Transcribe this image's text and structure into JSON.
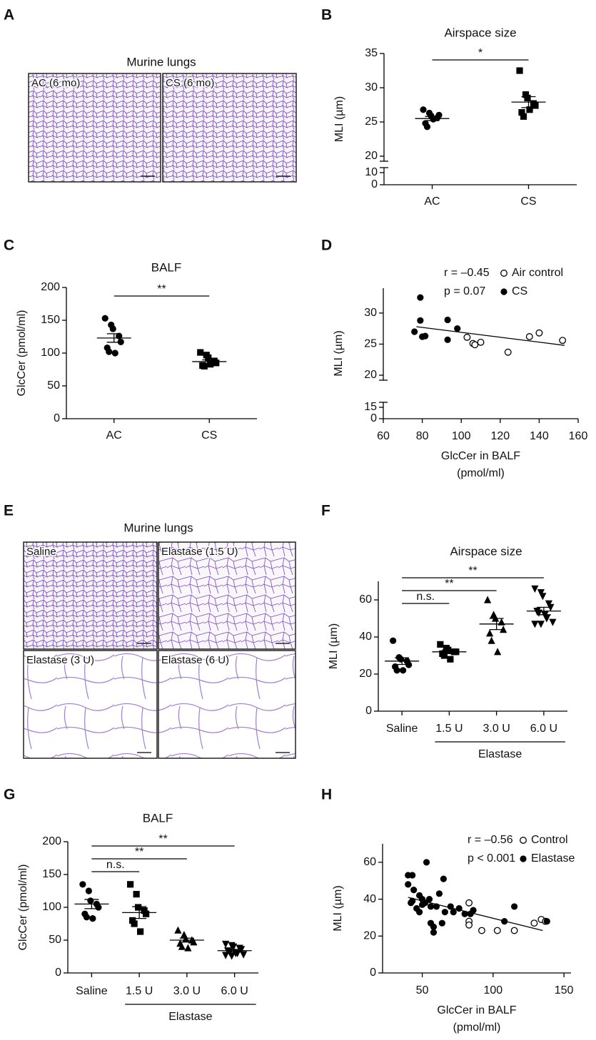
{
  "chart_data": [
    {
      "type": "image",
      "panel": "A",
      "title": "Murine lungs",
      "panels": [
        "AC (6 mo)",
        "CS (6 mo)"
      ]
    },
    {
      "type": "dot",
      "panel": "B",
      "title": "Airspace size",
      "ylabel": "MLI (µm)",
      "categories": [
        "AC",
        "CS"
      ],
      "markers": [
        "circle",
        "square"
      ],
      "color": "#000000",
      "values": [
        [
          26.8,
          26.3,
          25.9,
          25.6,
          26.0,
          24.8,
          24.3,
          25.4
        ],
        [
          32.5,
          29.0,
          28.5,
          27.7,
          27.4,
          26.4,
          25.8,
          26.8
        ]
      ],
      "mean": [
        25.5,
        27.9
      ],
      "sem": [
        0.3,
        0.8
      ],
      "ylim": [
        0,
        35
      ],
      "ybreak": [
        10,
        20
      ],
      "yticks": [
        0,
        10,
        20,
        25,
        30,
        35
      ],
      "brackets": [
        {
          "between": [
            "AC",
            "CS"
          ],
          "label": "*"
        }
      ]
    },
    {
      "type": "dot",
      "panel": "C",
      "title": "BALF",
      "ylabel": "GlcCer (pmol/ml)",
      "categories": [
        "AC",
        "CS"
      ],
      "markers": [
        "circle",
        "square"
      ],
      "color": "#000000",
      "values": [
        [
          153,
          143,
          137,
          126,
          117,
          108,
          102,
          100
        ],
        [
          101,
          97,
          93,
          88,
          85,
          81,
          80,
          83
        ]
      ],
      "mean": [
        123,
        87
      ],
      "sem": [
        6.5,
        2.7
      ],
      "ylim": [
        0,
        200
      ],
      "yticks": [
        0,
        50,
        100,
        150,
        200
      ],
      "brackets": [
        {
          "between": [
            "AC",
            "CS"
          ],
          "label": "**"
        }
      ]
    },
    {
      "type": "scatter",
      "panel": "D",
      "ylabel": "MLI (µm)",
      "xlabel": [
        "GlcCer in BALF",
        "(pmol/ml)"
      ],
      "stats": [
        "r = –0.45",
        "p = 0.07"
      ],
      "color": "#000000",
      "series": [
        {
          "name": "Air control",
          "marker": "open",
          "x": [
            103,
            106,
            107,
            110,
            124,
            135,
            140,
            152
          ],
          "values": [
            26.1,
            25.1,
            24.9,
            25.3,
            23.7,
            26.2,
            26.8,
            25.6
          ]
        },
        {
          "name": "CS",
          "marker": "filled",
          "x": [
            76,
            79,
            79,
            80,
            81.5,
            93,
            93,
            98
          ],
          "values": [
            27.0,
            32.5,
            28.8,
            26.2,
            26.3,
            28.9,
            25.7,
            27.5
          ]
        }
      ],
      "fit": {
        "x": [
          77,
          153
        ],
        "values": [
          27.8,
          24.8
        ]
      },
      "xlim": [
        60,
        160
      ],
      "xticks": [
        60,
        80,
        100,
        120,
        140,
        160
      ],
      "ylim": [
        0,
        34
      ],
      "ybreak": [
        15,
        20
      ],
      "yticks": [
        0,
        15,
        20,
        25,
        30
      ]
    },
    {
      "type": "image",
      "panel": "E",
      "title": "Murine lungs",
      "panels": [
        "Saline",
        "Elastase (1.5 U)",
        "Elastase (3 U)",
        "Elastase (6 U)"
      ]
    },
    {
      "type": "dot",
      "panel": "F",
      "title": "Airspace size",
      "ylabel": "MLI (µm)",
      "categories": [
        "Saline",
        "1.5 U",
        "3.0 U",
        "6.0 U"
      ],
      "markers": [
        "circle",
        "square",
        "triangle",
        "triangle-down"
      ],
      "color": "#000000",
      "values": [
        [
          38,
          29,
          28,
          27,
          25,
          24,
          22,
          22
        ],
        [
          36,
          34,
          33,
          32,
          32,
          31,
          30,
          28
        ],
        [
          60,
          52,
          50,
          48,
          44,
          42,
          38,
          32
        ],
        [
          66,
          64,
          62,
          58,
          56,
          54,
          53,
          52,
          50,
          48,
          47,
          47
        ]
      ],
      "mean": [
        27,
        32,
        47,
        54
      ],
      "sem": [
        1.8,
        1,
        3,
        2
      ],
      "ylim": [
        0,
        70
      ],
      "yticks": [
        0,
        20,
        40,
        60
      ],
      "brackets": [
        {
          "between": [
            "Saline",
            "1.5 U"
          ],
          "label": "n.s."
        },
        {
          "between": [
            "Saline",
            "3.0 U"
          ],
          "label": "**"
        },
        {
          "between": [
            "Saline",
            "6.0 U"
          ],
          "label": "**"
        }
      ],
      "group_label": {
        "label": "Elastase",
        "between": [
          "1.5 U",
          "6.0 U"
        ]
      }
    },
    {
      "type": "dot",
      "panel": "G",
      "title": "BALF",
      "ylabel": "GlcCer (pmol/ml)",
      "categories": [
        "Saline",
        "1.5 U",
        "3.0 U",
        "6.0 U"
      ],
      "markers": [
        "circle",
        "square",
        "triangle",
        "triangle-down"
      ],
      "color": "#000000",
      "values": [
        [
          135,
          125,
          110,
          105,
          100,
          90,
          85,
          83
        ],
        [
          135,
          120,
          100,
          95,
          90,
          80,
          75,
          63
        ],
        [
          65,
          58,
          52,
          50,
          47,
          45,
          40,
          38
        ],
        [
          44,
          42,
          40,
          38,
          36,
          34,
          32,
          30,
          30,
          28,
          27,
          26
        ]
      ],
      "mean": [
        105,
        92,
        50,
        34
      ],
      "sem": [
        7,
        9,
        3,
        2
      ],
      "ylim": [
        0,
        200
      ],
      "yticks": [
        0,
        50,
        100,
        150,
        200
      ],
      "brackets": [
        {
          "between": [
            "Saline",
            "1.5 U"
          ],
          "label": "n.s."
        },
        {
          "between": [
            "Saline",
            "3.0 U"
          ],
          "label": "**"
        },
        {
          "between": [
            "Saline",
            "6.0 U"
          ],
          "label": "**"
        }
      ],
      "group_label": {
        "label": "Elastase",
        "between": [
          "1.5 U",
          "6.0 U"
        ]
      }
    },
    {
      "type": "scatter",
      "panel": "H",
      "ylabel": "MLI (µm)",
      "xlabel": [
        "GlcCer in BALF",
        "(pmol/ml)"
      ],
      "stats": [
        "r = –0.56",
        "p < 0.001"
      ],
      "color": "#000000",
      "series": [
        {
          "name": "Control",
          "marker": "open",
          "x": [
            83,
            83,
            83,
            92,
            103,
            115,
            129,
            134,
            137
          ],
          "values": [
            38,
            28,
            26,
            23,
            23,
            23,
            27,
            29,
            28
          ]
        },
        {
          "name": "Elastase",
          "marker": "filled",
          "x": [
            40,
            43,
            40,
            44,
            48,
            42,
            50,
            52,
            46,
            48,
            50,
            53,
            55,
            56,
            56,
            58,
            58,
            60,
            62,
            64,
            65,
            66,
            70,
            72,
            76,
            80,
            84,
            86,
            108,
            115,
            138,
            43
          ],
          "values": [
            53,
            53,
            48,
            45,
            42,
            38,
            40,
            38,
            35,
            33,
            37,
            60,
            40,
            36,
            27,
            25,
            22,
            36,
            43,
            27,
            51,
            33,
            36,
            33,
            35,
            32,
            32,
            34,
            28,
            36,
            28,
            39
          ]
        }
      ],
      "fit": {
        "x": [
          40,
          135
        ],
        "values": [
          41,
          23
        ]
      },
      "xlim": [
        22,
        155
      ],
      "xticks": [
        50,
        100,
        150
      ],
      "ylim": [
        0,
        70
      ],
      "yticks": [
        0,
        20,
        40,
        60
      ]
    }
  ]
}
